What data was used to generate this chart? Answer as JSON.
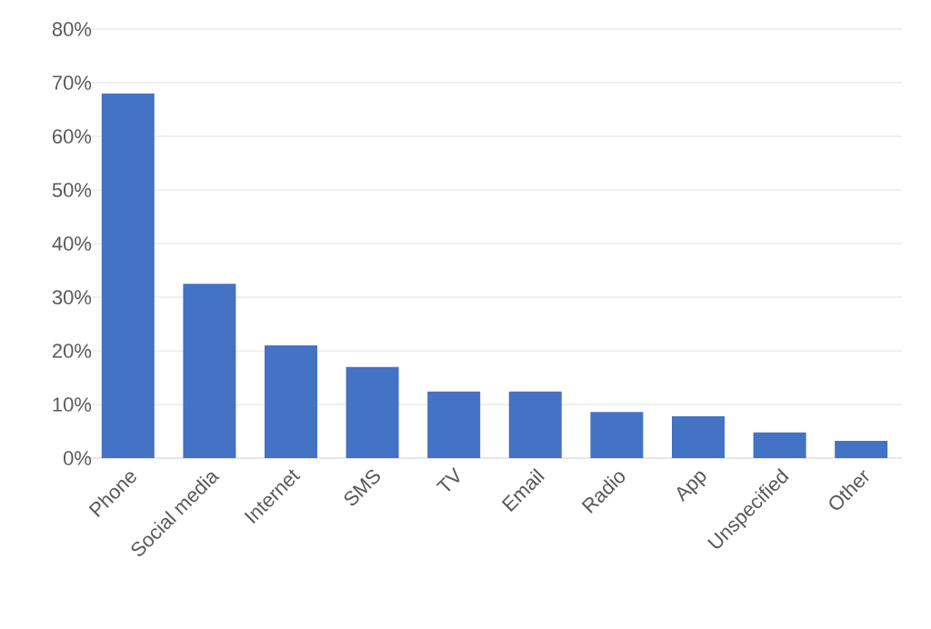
{
  "chart_data": {
    "type": "bar",
    "categories": [
      "Phone",
      "Social media",
      "Internet",
      "SMS",
      "TV",
      "Email",
      "Radio",
      "App",
      "Unspecified",
      "Other"
    ],
    "values": [
      68,
      32.5,
      21,
      17,
      12.4,
      12.4,
      8.6,
      7.8,
      4.8,
      3.2
    ],
    "color": "#4472c4",
    "ylim": [
      0,
      80
    ],
    "yticks": [
      {
        "value": 0,
        "label": "0%"
      },
      {
        "value": 10,
        "label": "10%"
      },
      {
        "value": 20,
        "label": "20%"
      },
      {
        "value": 30,
        "label": "30%"
      },
      {
        "value": 40,
        "label": "40%"
      },
      {
        "value": 50,
        "label": "50%"
      },
      {
        "value": 60,
        "label": "60%"
      },
      {
        "value": 70,
        "label": "70%"
      },
      {
        "value": 80,
        "label": "80%"
      }
    ],
    "grid": "y"
  }
}
